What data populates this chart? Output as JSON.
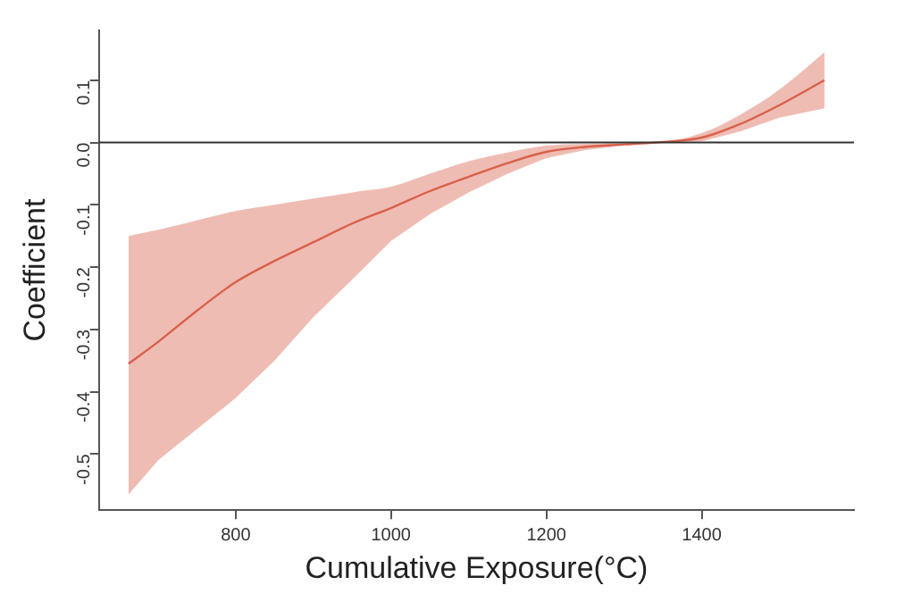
{
  "chart_data": {
    "type": "line",
    "xlabel": "Cumulative Exposure(°C)",
    "ylabel": "Coefficient",
    "xlim": [
      624,
      1596
    ],
    "xticks": [
      800,
      1000,
      1200,
      1400
    ],
    "ylim": [
      -0.59,
      0.18
    ],
    "yticks": [
      {
        "value": 0.1,
        "label": "0.1"
      },
      {
        "value": 0,
        "label": "0.0"
      },
      -0.1,
      -0.2,
      -0.3,
      -0.4,
      -0.5
    ],
    "grid": false,
    "legend": false,
    "marker": "none",
    "line_style": "solid",
    "ref_lines": [
      {
        "axis": "y",
        "value": 0,
        "color": "#333333"
      }
    ],
    "series": [
      {
        "color": "#d9604a",
        "x": [
          662,
          700,
          750,
          800,
          850,
          900,
          950,
          1000,
          1050,
          1100,
          1150,
          1200,
          1250,
          1300,
          1340,
          1400,
          1450,
          1500,
          1558
        ],
        "values": [
          -0.355,
          -0.32,
          -0.27,
          -0.224,
          -0.19,
          -0.16,
          -0.13,
          -0.105,
          -0.078,
          -0.055,
          -0.033,
          -0.015,
          -0.007,
          -0.003,
          0,
          0.008,
          0.03,
          0.06,
          0.1
        ],
        "lower": [
          -0.565,
          -0.51,
          -0.46,
          -0.41,
          -0.35,
          -0.28,
          -0.22,
          -0.158,
          -0.115,
          -0.08,
          -0.05,
          -0.025,
          -0.012,
          -0.005,
          0,
          0.002,
          0.018,
          0.04,
          0.055
        ],
        "upper": [
          -0.15,
          -0.14,
          -0.125,
          -0.11,
          -0.1,
          -0.09,
          -0.08,
          -0.071,
          -0.05,
          -0.03,
          -0.016,
          -0.005,
          -0.002,
          -0.001,
          0,
          0.015,
          0.045,
          0.085,
          0.145
        ]
      }
    ]
  }
}
